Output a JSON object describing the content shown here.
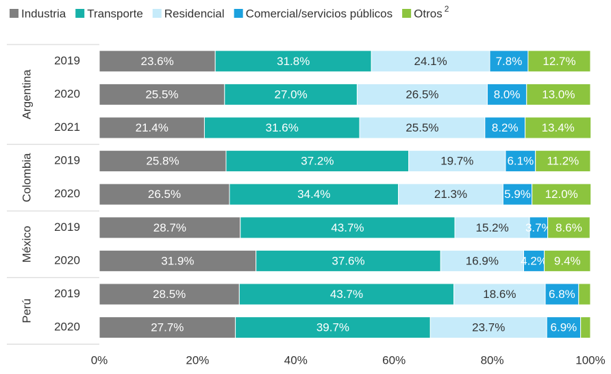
{
  "chart_data": {
    "type": "stacked-bar-horizontal",
    "groups": [
      {
        "name": "Argentina",
        "categories": [
          "2019",
          "2020",
          "2021"
        ]
      },
      {
        "name": "Colombia",
        "categories": [
          "2019",
          "2020"
        ]
      },
      {
        "name": "México",
        "categories": [
          "2019",
          "2020"
        ]
      },
      {
        "name": "Perú",
        "categories": [
          "2019",
          "2020"
        ]
      }
    ],
    "series": [
      {
        "name": "Industria",
        "color": "#7f7f7f",
        "label_color": "#ffffff",
        "values": [
          23.6,
          25.5,
          21.4,
          25.8,
          26.5,
          28.7,
          31.9,
          28.5,
          27.7
        ],
        "value_labels": [
          "23.6%",
          "25.5%",
          "21.4%",
          "25.8%",
          "26.5%",
          "28.7%",
          "31.9%",
          "28.5%",
          "27.7%"
        ]
      },
      {
        "name": "Transporte",
        "color": "#17b1a8",
        "label_color": "#ffffff",
        "values": [
          31.8,
          27.0,
          31.6,
          37.2,
          34.4,
          43.7,
          37.6,
          43.7,
          39.7
        ],
        "value_labels": [
          "31.8%",
          "27.0%",
          "31.6%",
          "37.2%",
          "34.4%",
          "43.7%",
          "37.6%",
          "43.7%",
          "39.7%"
        ]
      },
      {
        "name": "Residencial",
        "color": "#c6ebfa",
        "label_color": "#333333",
        "values": [
          24.1,
          26.5,
          25.5,
          19.7,
          21.3,
          15.2,
          16.9,
          18.6,
          23.7
        ],
        "value_labels": [
          "24.1%",
          "26.5%",
          "25.5%",
          "19.7%",
          "21.3%",
          "15.2%",
          "16.9%",
          "18.6%",
          "23.7%"
        ]
      },
      {
        "name": "Comercial/servicios públicos",
        "color": "#1ba1de",
        "label_color": "#ffffff",
        "values": [
          7.8,
          8.0,
          8.2,
          6.1,
          5.9,
          3.7,
          4.2,
          6.8,
          6.9
        ],
        "value_labels": [
          "7.8%",
          "8.0%",
          "8.2%",
          "6.1%",
          "5.9%",
          "3.7%",
          "4.2%",
          "6.8%",
          "6.9%"
        ]
      },
      {
        "name": "Otros",
        "name_note": "2",
        "color": "#8cc43e",
        "label_color": "#ffffff",
        "values": [
          12.7,
          13.0,
          13.4,
          11.2,
          12.0,
          8.6,
          9.4,
          2.4,
          2.0
        ],
        "value_labels": [
          "12.7%",
          "13.0%",
          "13.4%",
          "11.2%",
          "12.0%",
          "8.6%",
          "9.4%",
          null,
          null
        ]
      }
    ],
    "xlim": [
      0,
      100
    ],
    "xticks": [
      {
        "value": 0,
        "label": "0%"
      },
      {
        "value": 20,
        "label": "20%"
      },
      {
        "value": 40,
        "label": "40%"
      },
      {
        "value": 60,
        "label": "60%"
      },
      {
        "value": 80,
        "label": "80%"
      },
      {
        "value": 100,
        "label": "100%"
      }
    ],
    "grid": false,
    "legend": "top"
  }
}
